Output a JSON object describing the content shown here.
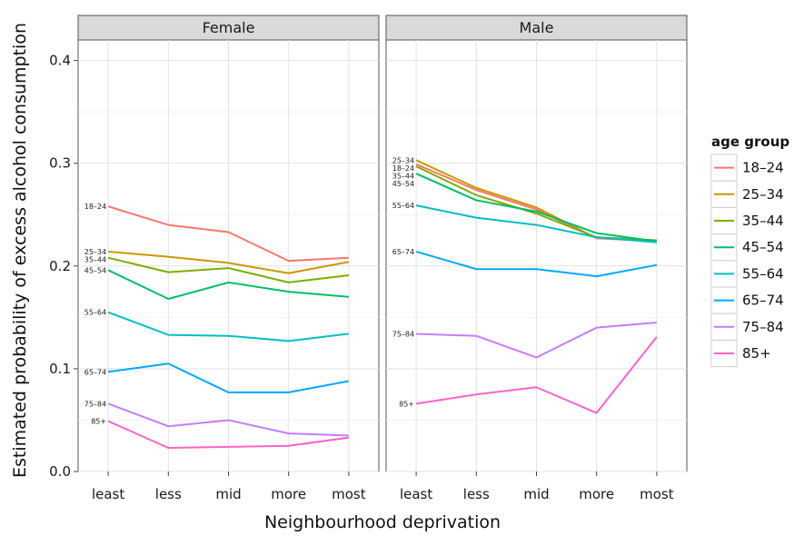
{
  "chart_data": {
    "type": "line",
    "xlabel": "Neighbourhood deprivation",
    "ylabel": "Estimated probability of excess alcohol consumption",
    "categories": [
      "least",
      "less",
      "mid",
      "more",
      "most"
    ],
    "ylim": [
      0,
      0.42
    ],
    "yticks": [
      0.0,
      0.1,
      0.2,
      0.3,
      0.4
    ],
    "ytick_labels": [
      "0.0",
      "0.1",
      "0.2",
      "0.3",
      "0.4"
    ],
    "grid": true,
    "legend": {
      "title": "age group",
      "position": "right"
    },
    "series_names": [
      "18–24",
      "25–34",
      "35–44",
      "45–54",
      "55–64",
      "65–74",
      "75–84",
      "85+"
    ],
    "colors": [
      "#F8766D",
      "#CD9600",
      "#7CAE00",
      "#00BE67",
      "#00BFC4",
      "#00A9FF",
      "#C77CFF",
      "#FF61CC"
    ],
    "panels": [
      {
        "strip": "Female",
        "series": [
          {
            "name": "18–24",
            "values": [
              0.258,
              0.24,
              0.233,
              0.205,
              0.208
            ]
          },
          {
            "name": "25–34",
            "values": [
              0.214,
              0.209,
              0.203,
              0.193,
              0.204
            ]
          },
          {
            "name": "35–44",
            "values": [
              0.208,
              0.194,
              0.198,
              0.184,
              0.191
            ]
          },
          {
            "name": "45–54",
            "values": [
              0.196,
              0.168,
              0.184,
              0.175,
              0.17
            ]
          },
          {
            "name": "55–64",
            "values": [
              0.155,
              0.133,
              0.132,
              0.127,
              0.134
            ]
          },
          {
            "name": "65–74",
            "values": [
              0.097,
              0.105,
              0.077,
              0.077,
              0.088
            ]
          },
          {
            "name": "75–84",
            "values": [
              0.066,
              0.044,
              0.05,
              0.037,
              0.035
            ]
          },
          {
            "name": "85+",
            "values": [
              0.049,
              0.023,
              0.024,
              0.025,
              0.033
            ]
          }
        ]
      },
      {
        "strip": "Male",
        "series": [
          {
            "name": "25–34",
            "values": [
              0.303,
              0.276,
              0.257,
              0.227,
              0.225
            ]
          },
          {
            "name": "18–24",
            "values": [
              0.299,
              0.274,
              0.255,
              0.227,
              0.224
            ]
          },
          {
            "name": "35–44",
            "values": [
              0.297,
              0.269,
              0.251,
              0.228,
              0.225
            ]
          },
          {
            "name": "45–54",
            "values": [
              0.29,
              0.264,
              0.253,
              0.232,
              0.224
            ]
          },
          {
            "name": "55–64",
            "values": [
              0.259,
              0.247,
              0.24,
              0.228,
              0.223
            ]
          },
          {
            "name": "65–74",
            "values": [
              0.214,
              0.197,
              0.197,
              0.19,
              0.201
            ]
          },
          {
            "name": "75–84",
            "values": [
              0.134,
              0.132,
              0.111,
              0.14,
              0.145
            ]
          },
          {
            "name": "85+",
            "values": [
              0.066,
              0.075,
              0.082,
              0.057,
              0.131
            ]
          }
        ]
      }
    ]
  }
}
